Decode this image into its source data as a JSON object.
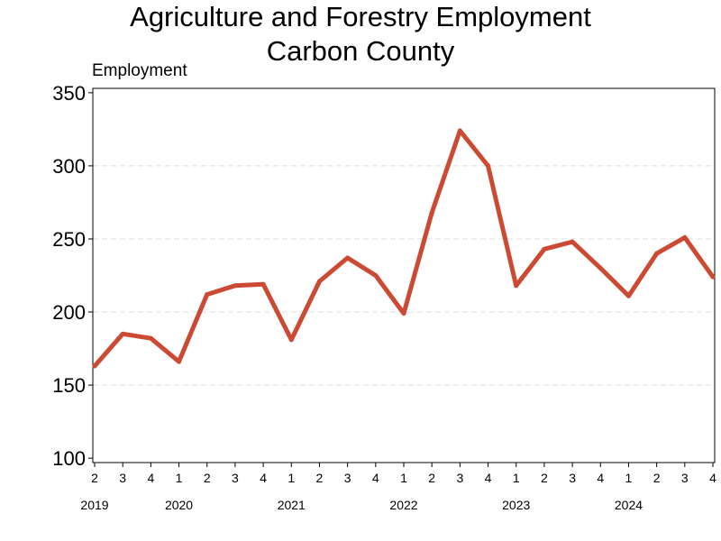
{
  "chart_data": {
    "type": "line",
    "title_line1": "Agriculture and Forestry Employment",
    "title_line2": "Carbon County",
    "ylabel": "Employment",
    "ylim": [
      97,
      353
    ],
    "yticks": [
      100,
      150,
      200,
      250,
      300,
      350
    ],
    "grid": true,
    "line_color": "#cc4a33",
    "grid_color": "#dddddd",
    "x_quarter_labels": [
      "2",
      "3",
      "4",
      "1",
      "2",
      "3",
      "4",
      "1",
      "2",
      "3",
      "4",
      "1",
      "2",
      "3",
      "4",
      "1",
      "2",
      "3",
      "4",
      "1",
      "2",
      "3",
      "4"
    ],
    "year_labels": [
      {
        "label": "2019",
        "quarter_index": 0
      },
      {
        "label": "2020",
        "quarter_index": 3
      },
      {
        "label": "2021",
        "quarter_index": 7
      },
      {
        "label": "2022",
        "quarter_index": 11
      },
      {
        "label": "2023",
        "quarter_index": 15
      },
      {
        "label": "2024",
        "quarter_index": 19
      }
    ],
    "series": [
      {
        "values": [
          163,
          185,
          182,
          166,
          212,
          218,
          219,
          181,
          221,
          237,
          225,
          199,
          268,
          324,
          300,
          218,
          243,
          248,
          230,
          211,
          240,
          251,
          224
        ]
      }
    ]
  }
}
